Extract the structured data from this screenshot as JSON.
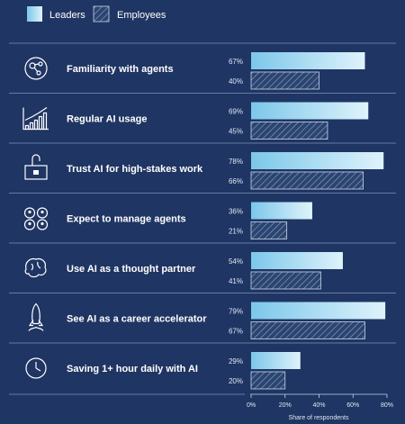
{
  "chart_data": {
    "type": "bar",
    "orientation": "horizontal",
    "categories": [
      "Familiarity with agents",
      "Regular AI usage",
      "Trust AI for high-stakes work",
      "Expect to manage agents",
      "Use AI as a thought partner",
      "See AI as a career accelerator",
      "Saving 1+ hour daily with AI"
    ],
    "series": [
      {
        "name": "Leaders",
        "values": [
          67,
          69,
          78,
          36,
          54,
          79,
          29
        ],
        "color": "#bfe3f5",
        "pattern": "gradient"
      },
      {
        "name": "Employees",
        "values": [
          40,
          45,
          66,
          21,
          41,
          67,
          20
        ],
        "color": "#2b4470",
        "pattern": "hatched"
      }
    ],
    "value_labels": {
      "Leaders": [
        "67%",
        "69%",
        "78%",
        "36%",
        "54%",
        "79%",
        "29%"
      ],
      "Employees": [
        "40%",
        "45%",
        "66%",
        "21%",
        "41%",
        "67%",
        "20%"
      ]
    },
    "xlim": [
      0,
      80
    ],
    "xticks": [
      "0%",
      "20%",
      "40%",
      "60%",
      "80%"
    ],
    "xlabel": "Share of respondents",
    "legend_position": "top-left",
    "grid": false,
    "row_icons": [
      "network-icon",
      "rising-chart-icon",
      "briefcase-lock-icon",
      "agents-grid-icon",
      "brain-icon",
      "rocket-icon",
      "clock-icon"
    ]
  },
  "colors": {
    "background": "#1f3563",
    "divider": "#7f95b8",
    "text": "#ffffff"
  }
}
